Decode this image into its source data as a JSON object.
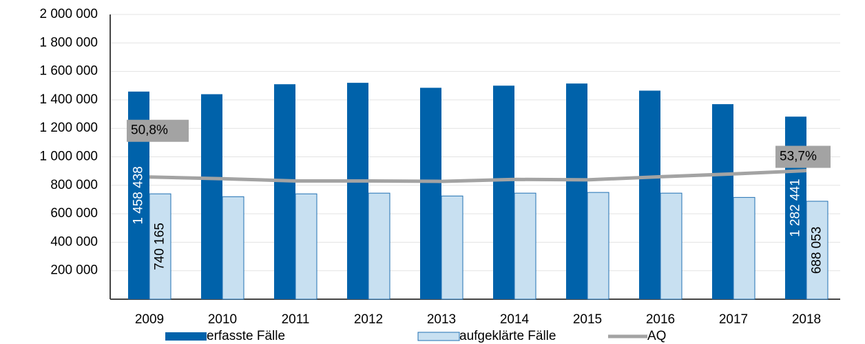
{
  "chart_data": {
    "type": "bar",
    "categories": [
      "2009",
      "2010",
      "2011",
      "2012",
      "2013",
      "2014",
      "2015",
      "2016",
      "2017",
      "2018"
    ],
    "series": [
      {
        "name": "erfasste Fälle",
        "type": "bar",
        "color": "#0062aa",
        "values": [
          1458438,
          1440000,
          1510000,
          1520000,
          1485000,
          1500000,
          1515000,
          1465000,
          1370000,
          1282441
        ],
        "value_labels": [
          "1 458 438",
          null,
          null,
          null,
          null,
          null,
          null,
          null,
          null,
          "1 282 441"
        ]
      },
      {
        "name": "aufgeklärte Fälle",
        "type": "bar",
        "color": "#c8e0f1",
        "border": "#1f6fb2",
        "values": [
          740165,
          720000,
          740000,
          745000,
          725000,
          745000,
          750000,
          745000,
          715000,
          688053
        ],
        "value_labels": [
          "740 165",
          null,
          null,
          null,
          null,
          null,
          null,
          null,
          null,
          "688 053"
        ]
      },
      {
        "name": "AQ",
        "type": "line",
        "axis": "y2",
        "color": "#a3a3a3",
        "values": [
          50.8,
          50.0,
          49.0,
          49.0,
          48.8,
          49.7,
          49.5,
          50.9,
          52.2,
          53.7
        ],
        "value_labels": [
          "50,8%",
          null,
          null,
          null,
          null,
          null,
          null,
          null,
          null,
          "53,7%"
        ]
      }
    ],
    "ylim": [
      0,
      2000000
    ],
    "yticks": [
      {
        "value": 200000,
        "label": "200 000"
      },
      {
        "value": 400000,
        "label": "400 000"
      },
      {
        "value": 600000,
        "label": "600 000"
      },
      {
        "value": 800000,
        "label": "800 000"
      },
      {
        "value": 1000000,
        "label": "1 000 000"
      },
      {
        "value": 1200000,
        "label": "1 200 000"
      },
      {
        "value": 1400000,
        "label": "1 400 000"
      },
      {
        "value": 1600000,
        "label": "1 600 000"
      },
      {
        "value": 1800000,
        "label": "1 800 000"
      },
      {
        "value": 2000000,
        "label": "2 000 000"
      }
    ],
    "y2lim": [
      -5,
      125
    ],
    "grid": true,
    "legend": "bottom"
  }
}
